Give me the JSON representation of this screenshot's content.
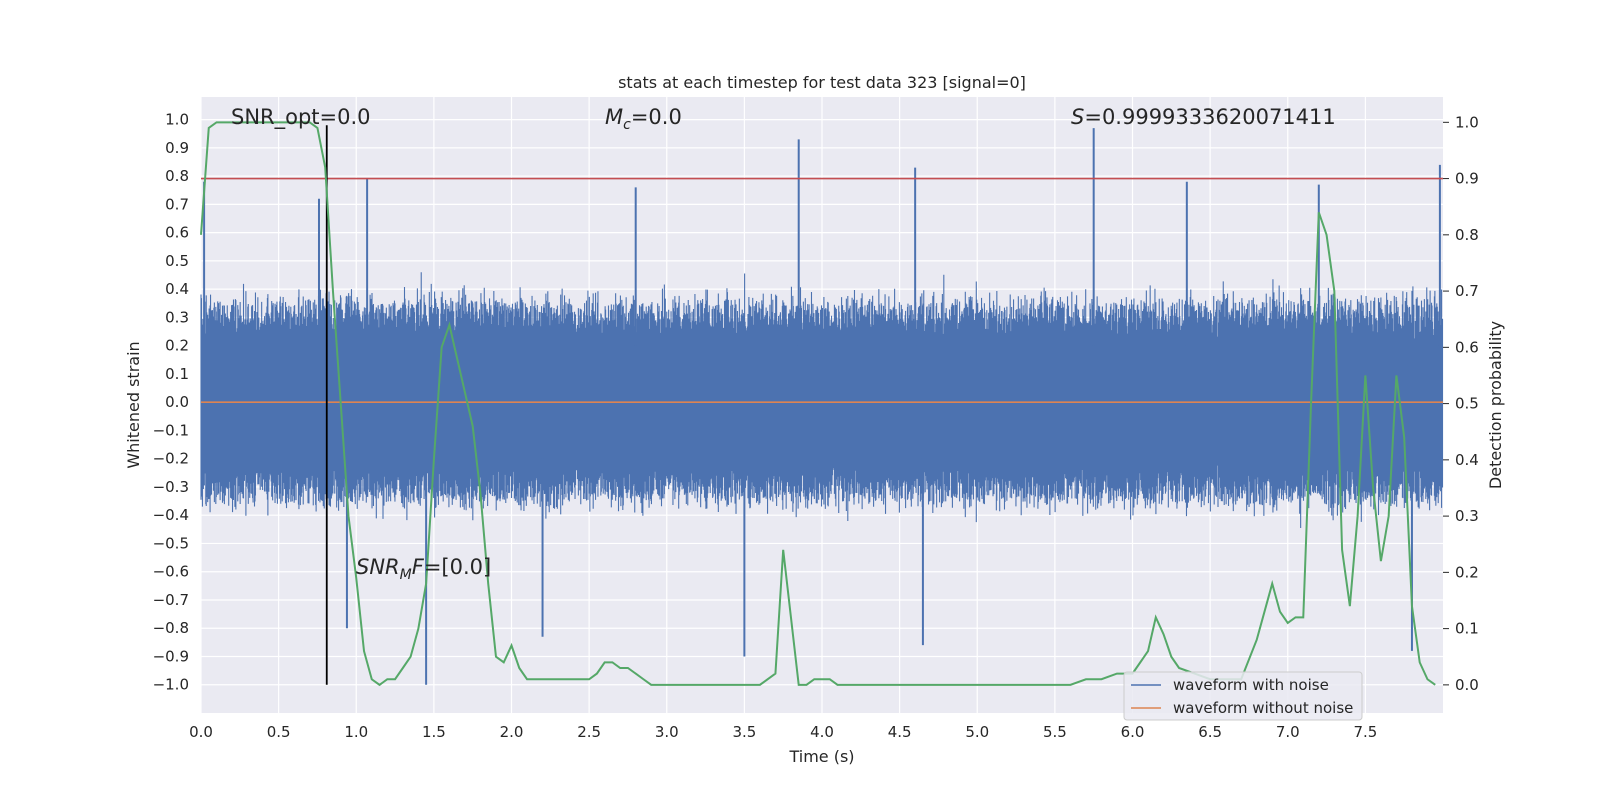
{
  "chart_data": {
    "type": "line",
    "title": "stats at each timestep for test data 323 [signal=0]",
    "xlabel": "Time (s)",
    "ylabel": "Whitened strain",
    "ylabel_right": "Detection probability",
    "xlim": [
      0.0,
      8.0
    ],
    "ylim": [
      -1.1,
      1.08
    ],
    "ylim_right": [
      -0.05,
      1.045
    ],
    "x_ticks": [
      "0.0",
      "0.5",
      "1.0",
      "1.5",
      "2.0",
      "2.5",
      "3.0",
      "3.5",
      "4.0",
      "4.5",
      "5.0",
      "5.5",
      "6.0",
      "6.5",
      "7.0",
      "7.5"
    ],
    "y_ticks": [
      "1.0",
      "0.9",
      "0.8",
      "0.7",
      "0.6",
      "0.5",
      "0.4",
      "0.3",
      "0.2",
      "0.1",
      "0.0",
      "−0.1",
      "−0.2",
      "−0.3",
      "−0.4",
      "−0.5",
      "−0.6",
      "−0.7",
      "−0.8",
      "−0.9",
      "−1.0"
    ],
    "y_ticks_right": [
      "1.0",
      "0.9",
      "0.8",
      "0.7",
      "0.6",
      "0.5",
      "0.4",
      "0.3",
      "0.2",
      "0.1",
      "0.0"
    ],
    "grid": true,
    "legend_position": "lower-right",
    "annotations": {
      "snr_opt": "SNR_opt=0.0",
      "mc_symbol": "M",
      "mc_sub": "c",
      "mc_value": "=0.0",
      "s_symbol": "S",
      "s_value": "=0.9999333620071411",
      "snr_mf_symbol": "SNR",
      "snr_mf_sub": "M",
      "snr_mf_symbol2": "F",
      "snr_mf_value": "=[0.0]"
    },
    "series": [
      {
        "name": "waveform with noise",
        "color": "#4c72b0",
        "axis": "left",
        "description_values": {
          "core_band": [
            -0.2,
            0.2
          ],
          "typical_envelope": [
            -0.45,
            0.45
          ]
        },
        "peaks": [
          {
            "x": 0.02,
            "y": 0.78
          },
          {
            "x": 0.76,
            "y": 0.72
          },
          {
            "x": 1.07,
            "y": 0.79
          },
          {
            "x": 1.45,
            "y": -1.0
          },
          {
            "x": 0.94,
            "y": -0.8
          },
          {
            "x": 2.8,
            "y": 0.76
          },
          {
            "x": 3.85,
            "y": 0.93
          },
          {
            "x": 4.6,
            "y": 0.83
          },
          {
            "x": 5.75,
            "y": 0.97
          },
          {
            "x": 6.35,
            "y": 0.78
          },
          {
            "x": 7.2,
            "y": 0.77
          },
          {
            "x": 7.98,
            "y": 0.84
          },
          {
            "x": 4.65,
            "y": -0.86
          },
          {
            "x": 3.5,
            "y": -0.9
          },
          {
            "x": 7.8,
            "y": -0.88
          },
          {
            "x": 2.2,
            "y": -0.83
          }
        ]
      },
      {
        "name": "waveform without noise",
        "color": "#dd8452",
        "axis": "left",
        "x": [
          0.0,
          8.0
        ],
        "y": [
          0.0,
          0.0
        ]
      },
      {
        "name": "",
        "color": "#55a868",
        "axis": "right",
        "x": [
          0.0,
          0.05,
          0.1,
          0.15,
          0.2,
          0.3,
          0.4,
          0.5,
          0.6,
          0.7,
          0.75,
          0.8,
          0.85,
          0.9,
          0.95,
          1.0,
          1.05,
          1.1,
          1.15,
          1.2,
          1.25,
          1.3,
          1.35,
          1.4,
          1.45,
          1.5,
          1.55,
          1.6,
          1.65,
          1.7,
          1.75,
          1.8,
          1.85,
          1.9,
          1.95,
          2.0,
          2.05,
          2.1,
          2.15,
          2.2,
          2.25,
          2.3,
          2.35,
          2.4,
          2.5,
          2.55,
          2.6,
          2.65,
          2.7,
          2.75,
          2.8,
          2.85,
          2.9,
          2.95,
          3.0,
          3.1,
          3.2,
          3.3,
          3.4,
          3.5,
          3.6,
          3.7,
          3.75,
          3.8,
          3.85,
          3.9,
          3.95,
          4.0,
          4.05,
          4.1,
          4.15,
          4.2,
          4.3,
          4.4,
          4.5,
          4.6,
          4.7,
          4.8,
          4.9,
          5.0,
          5.1,
          5.2,
          5.3,
          5.4,
          5.5,
          5.6,
          5.7,
          5.8,
          5.9,
          6.0,
          6.05,
          6.1,
          6.15,
          6.2,
          6.25,
          6.3,
          6.4,
          6.5,
          6.6,
          6.7,
          6.8,
          6.9,
          6.95,
          7.0,
          7.05,
          7.1,
          7.15,
          7.2,
          7.25,
          7.3,
          7.35,
          7.4,
          7.45,
          7.5,
          7.55,
          7.6,
          7.65,
          7.7,
          7.75,
          7.8,
          7.85,
          7.9,
          7.95
        ],
        "y": [
          0.8,
          0.99,
          1.0,
          1.0,
          1.0,
          1.0,
          1.0,
          1.0,
          1.0,
          1.0,
          0.99,
          0.92,
          0.7,
          0.5,
          0.3,
          0.19,
          0.06,
          0.01,
          0.0,
          0.01,
          0.01,
          0.03,
          0.05,
          0.1,
          0.18,
          0.4,
          0.6,
          0.64,
          0.58,
          0.52,
          0.46,
          0.34,
          0.18,
          0.05,
          0.04,
          0.07,
          0.03,
          0.01,
          0.01,
          0.01,
          0.01,
          0.01,
          0.01,
          0.01,
          0.01,
          0.02,
          0.04,
          0.04,
          0.03,
          0.03,
          0.02,
          0.01,
          0.0,
          0.0,
          0.0,
          0.0,
          0.0,
          0.0,
          0.0,
          0.0,
          0.0,
          0.02,
          0.24,
          0.12,
          0.0,
          0.0,
          0.01,
          0.01,
          0.01,
          0.0,
          0.0,
          0.0,
          0.0,
          0.0,
          0.0,
          0.0,
          0.0,
          0.0,
          0.0,
          0.0,
          0.0,
          0.0,
          0.0,
          0.0,
          0.0,
          0.0,
          0.01,
          0.01,
          0.02,
          0.02,
          0.04,
          0.06,
          0.12,
          0.09,
          0.05,
          0.03,
          0.02,
          0.01,
          0.01,
          0.01,
          0.08,
          0.18,
          0.13,
          0.11,
          0.12,
          0.12,
          0.5,
          0.84,
          0.8,
          0.7,
          0.24,
          0.14,
          0.3,
          0.55,
          0.35,
          0.22,
          0.3,
          0.55,
          0.44,
          0.14,
          0.04,
          0.01,
          0.0
        ]
      }
    ],
    "hlines": [
      {
        "axis": "right",
        "y": 0.9,
        "color": "#c44e52"
      },
      {
        "axis": "left",
        "y": 0.0,
        "color": "#dd8452"
      }
    ],
    "vlines": [
      {
        "axis": "left",
        "x": 0.81,
        "ymin": -1.0,
        "ymax": 0.98,
        "color": "#000000"
      }
    ]
  }
}
